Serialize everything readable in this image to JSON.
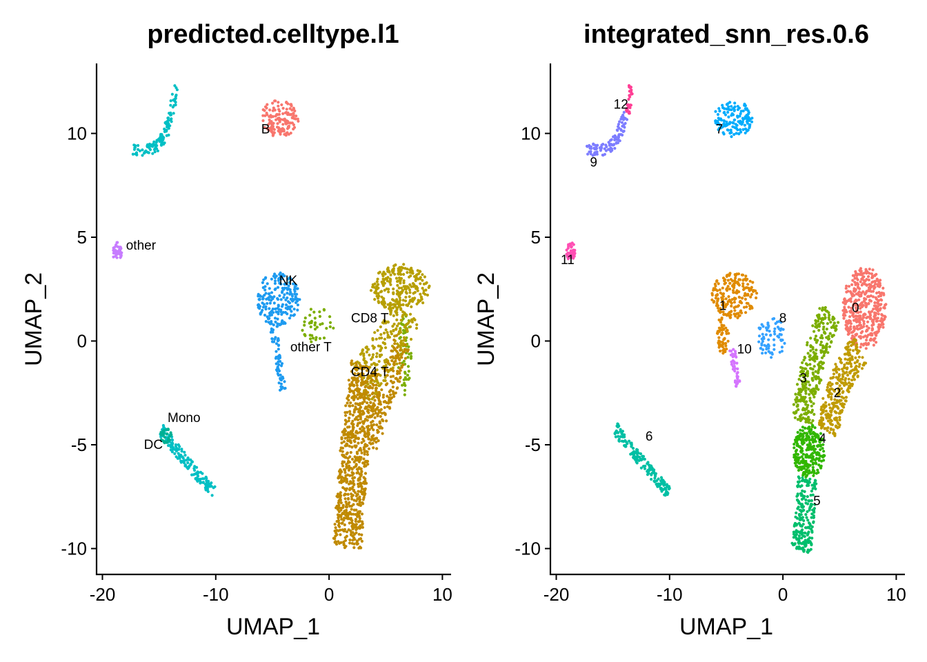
{
  "chart_data": [
    {
      "type": "scatter",
      "title": "predicted.celltype.l1",
      "xlabel": "UMAP_1",
      "ylabel": "UMAP_2",
      "xlim": [
        -20.5,
        10.5
      ],
      "ylim": [
        -11.4,
        13.5
      ],
      "xticks": [
        -20,
        -10,
        0,
        10
      ],
      "yticks": [
        -10,
        -5,
        0,
        5,
        10
      ],
      "xtick_labels": [
        "-20",
        "-10",
        "0",
        "10"
      ],
      "ytick_labels": [
        "-10",
        "-5",
        "0",
        "5",
        "10"
      ],
      "grid": false,
      "legend": "none",
      "clusters": [
        {
          "label": "B",
          "color": "#F8766D",
          "label_pos": [
            -5.6,
            10.0
          ],
          "regions": [
            {
              "type": "blob",
              "cx": -4.4,
              "cy": 10.7,
              "rx": 1.7,
              "ry": 0.9,
              "n": 140
            }
          ]
        },
        {
          "label": "other",
          "color": "#C77CFF",
          "label_pos": [
            -16.6,
            4.4
          ],
          "regions": [
            {
              "type": "blob",
              "cx": -18.7,
              "cy": 4.3,
              "rx": 0.4,
              "ry": 0.45,
              "n": 40
            }
          ]
        },
        {
          "label": "NK",
          "color": "#1E9BF0",
          "label_pos": [
            -3.6,
            2.7
          ],
          "regions": [
            {
              "type": "blob",
              "cx": -4.5,
              "cy": 2.0,
              "rx": 1.9,
              "ry": 1.3,
              "n": 200
            },
            {
              "type": "curve",
              "pts": [
                [
                  -5.0,
                  0.8
                ],
                [
                  -4.6,
                  -0.5
                ],
                [
                  -4.3,
                  -1.6
                ],
                [
                  -4.1,
                  -2.4
                ]
              ],
              "w": 0.3,
              "n": 60
            }
          ]
        },
        {
          "label": "other T",
          "color": "#7CAE00",
          "label_pos": [
            -1.6,
            -0.5
          ],
          "regions": [
            {
              "type": "blob",
              "cx": -1.2,
              "cy": 0.7,
              "rx": 1.6,
              "ry": 1.0,
              "n": 40
            },
            {
              "type": "blob",
              "cx": 6.7,
              "cy": -0.6,
              "rx": 0.6,
              "ry": 2.0,
              "n": 60
            }
          ]
        },
        {
          "label": "CD8 T",
          "color": "#B79F00",
          "label_pos": [
            3.6,
            0.9
          ],
          "regions": [
            {
              "type": "blob",
              "cx": 6.3,
              "cy": 2.5,
              "rx": 2.6,
              "ry": 1.2,
              "n": 230
            },
            {
              "type": "curve",
              "pts": [
                [
                  7.0,
                  1.6
                ],
                [
                  5.6,
                  0.2
                ],
                [
                  4.0,
                  -1.2
                ],
                [
                  2.8,
                  -2.2
                ]
              ],
              "w": 1.3,
              "n": 240
            }
          ]
        },
        {
          "label": "CD4 T",
          "color": "#C08A00",
          "label_pos": [
            3.6,
            -1.7
          ],
          "regions": [
            {
              "type": "curve",
              "pts": [
                [
                  3.2,
                  -1.2
                ],
                [
                  2.7,
                  -3.2
                ],
                [
                  2.2,
                  -5.6
                ],
                [
                  1.9,
                  -7.8
                ],
                [
                  1.6,
                  -10.0
                ]
              ],
              "w": 1.25,
              "n": 720
            },
            {
              "type": "curve",
              "pts": [
                [
                  6.5,
                  0.0
                ],
                [
                  5.5,
                  -1.8
                ],
                [
                  4.5,
                  -3.5
                ],
                [
                  3.6,
                  -5.0
                ]
              ],
              "w": 0.7,
              "n": 180
            }
          ]
        },
        {
          "label": "Mono",
          "color": "#00BFC4",
          "label_pos": [
            -12.8,
            -3.9
          ],
          "regions": [
            {
              "type": "curve",
              "pts": [
                [
                  -14.8,
                  -4.3
                ],
                [
                  -13.8,
                  -5.0
                ],
                [
                  -12.5,
                  -5.9
                ],
                [
                  -11.3,
                  -6.6
                ],
                [
                  -10.1,
                  -7.3
                ]
              ],
              "w": 0.3,
              "n": 150
            },
            {
              "type": "curve",
              "pts": [
                [
                  -13.5,
                  12.3
                ],
                [
                  -13.9,
                  11.0
                ],
                [
                  -14.4,
                  10.0
                ],
                [
                  -15.1,
                  9.4
                ],
                [
                  -16.0,
                  9.2
                ],
                [
                  -17.3,
                  9.2
                ]
              ],
              "w": 0.28,
              "n": 120
            }
          ]
        },
        {
          "label": "DC",
          "color": "#00B094",
          "label_pos": [
            -15.5,
            -5.2
          ],
          "regions": [
            {
              "type": "blob",
              "cx": -14.4,
              "cy": -4.6,
              "rx": 0.5,
              "ry": 0.4,
              "n": 30
            }
          ]
        }
      ]
    },
    {
      "type": "scatter",
      "title": "integrated_snn_res.0.6",
      "xlabel": "UMAP_1",
      "ylabel": "UMAP_2",
      "xlim": [
        -20.5,
        10.5
      ],
      "ylim": [
        -11.4,
        13.5
      ],
      "xticks": [
        -20,
        -10,
        0,
        10
      ],
      "yticks": [
        -10,
        -5,
        0,
        5,
        10
      ],
      "xtick_labels": [
        "-20",
        "-10",
        "0",
        "10"
      ],
      "ytick_labels": [
        "-10",
        "-5",
        "0",
        "5",
        "10"
      ],
      "grid": false,
      "legend": "none",
      "clusters": [
        {
          "label": "0",
          "color": "#F8766D",
          "label_pos": [
            6.4,
            1.4
          ],
          "regions": [
            {
              "type": "blob",
              "cx": 7.2,
              "cy": 1.6,
              "rx": 1.9,
              "ry": 2.0,
              "n": 420
            }
          ]
        },
        {
          "label": "1",
          "color": "#E08B00",
          "label_pos": [
            -5.3,
            1.5
          ],
          "regions": [
            {
              "type": "blob",
              "cx": -4.3,
              "cy": 2.2,
              "rx": 2.0,
              "ry": 1.1,
              "n": 200
            },
            {
              "type": "blob",
              "cx": -5.3,
              "cy": 0.3,
              "rx": 0.55,
              "ry": 0.9,
              "n": 60
            }
          ]
        },
        {
          "label": "2",
          "color": "#C09B00",
          "label_pos": [
            4.8,
            -2.7
          ],
          "regions": [
            {
              "type": "curve",
              "pts": [
                [
                  6.8,
                  -0.4
                ],
                [
                  5.4,
                  -1.6
                ],
                [
                  4.4,
                  -3.0
                ],
                [
                  4.0,
                  -4.4
                ]
              ],
              "w": 0.9,
              "n": 300
            }
          ]
        },
        {
          "label": "3",
          "color": "#7CAE00",
          "label_pos": [
            1.8,
            -2.0
          ],
          "regions": [
            {
              "type": "curve",
              "pts": [
                [
                  4.2,
                  1.4
                ],
                [
                  3.0,
                  -0.4
                ],
                [
                  2.2,
                  -2.2
                ],
                [
                  1.7,
                  -3.9
                ]
              ],
              "w": 0.95,
              "n": 320
            }
          ]
        },
        {
          "label": "4",
          "color": "#31B700",
          "label_pos": [
            3.5,
            -4.9
          ],
          "regions": [
            {
              "type": "blob",
              "cx": 2.3,
              "cy": -5.3,
              "rx": 1.4,
              "ry": 1.3,
              "n": 260
            }
          ]
        },
        {
          "label": "5",
          "color": "#00BE6C",
          "label_pos": [
            3.0,
            -7.9
          ],
          "regions": [
            {
              "type": "curve",
              "pts": [
                [
                  2.2,
                  -6.6
                ],
                [
                  2.0,
                  -8.0
                ],
                [
                  1.8,
                  -9.3
                ],
                [
                  1.6,
                  -10.1
                ]
              ],
              "w": 0.85,
              "n": 220
            }
          ]
        },
        {
          "label": "6",
          "color": "#00BFA4",
          "label_pos": [
            -11.8,
            -4.8
          ],
          "regions": [
            {
              "type": "curve",
              "pts": [
                [
                  -14.8,
                  -4.2
                ],
                [
                  -13.6,
                  -5.1
                ],
                [
                  -12.3,
                  -5.9
                ],
                [
                  -11.1,
                  -6.7
                ],
                [
                  -10.1,
                  -7.3
                ]
              ],
              "w": 0.3,
              "n": 170
            }
          ]
        },
        {
          "label": "7",
          "color": "#00ACFC",
          "label_pos": [
            -5.6,
            10.0
          ],
          "regions": [
            {
              "type": "blob",
              "cx": -4.4,
              "cy": 10.7,
              "rx": 1.7,
              "ry": 0.9,
              "n": 140
            }
          ]
        },
        {
          "label": "8",
          "color": "#35A2FF",
          "label_pos": [
            0.0,
            0.9
          ],
          "regions": [
            {
              "type": "blob",
              "cx": -1.0,
              "cy": 0.2,
              "rx": 1.2,
              "ry": 1.1,
              "n": 70
            }
          ]
        },
        {
          "label": "9",
          "color": "#7D7DFF",
          "label_pos": [
            -16.7,
            8.4
          ],
          "regions": [
            {
              "type": "curve",
              "pts": [
                [
                  -13.9,
                  11.0
                ],
                [
                  -14.4,
                  10.0
                ],
                [
                  -15.1,
                  9.4
                ],
                [
                  -16.0,
                  9.2
                ],
                [
                  -17.3,
                  9.2
                ]
              ],
              "w": 0.3,
              "n": 110
            }
          ]
        },
        {
          "label": "10",
          "color": "#D575FE",
          "label_pos": [
            -3.4,
            -0.6
          ],
          "regions": [
            {
              "type": "curve",
              "pts": [
                [
                  -4.5,
                  -0.4
                ],
                [
                  -4.2,
                  -1.3
                ],
                [
                  -4.0,
                  -2.2
                ]
              ],
              "w": 0.25,
              "n": 45
            }
          ]
        },
        {
          "label": "11",
          "color": "#FF4FB3",
          "label_pos": [
            -19.0,
            3.7
          ],
          "regions": [
            {
              "type": "blob",
              "cx": -18.7,
              "cy": 4.3,
              "rx": 0.4,
              "ry": 0.45,
              "n": 40
            }
          ]
        },
        {
          "label": "12",
          "color": "#FF3F95",
          "label_pos": [
            -14.3,
            11.2
          ],
          "regions": [
            {
              "type": "curve",
              "pts": [
                [
                  -13.4,
                  12.3
                ],
                [
                  -13.5,
                  11.6
                ],
                [
                  -13.7,
                  11.0
                ]
              ],
              "w": 0.18,
              "n": 30
            }
          ]
        }
      ]
    }
  ]
}
